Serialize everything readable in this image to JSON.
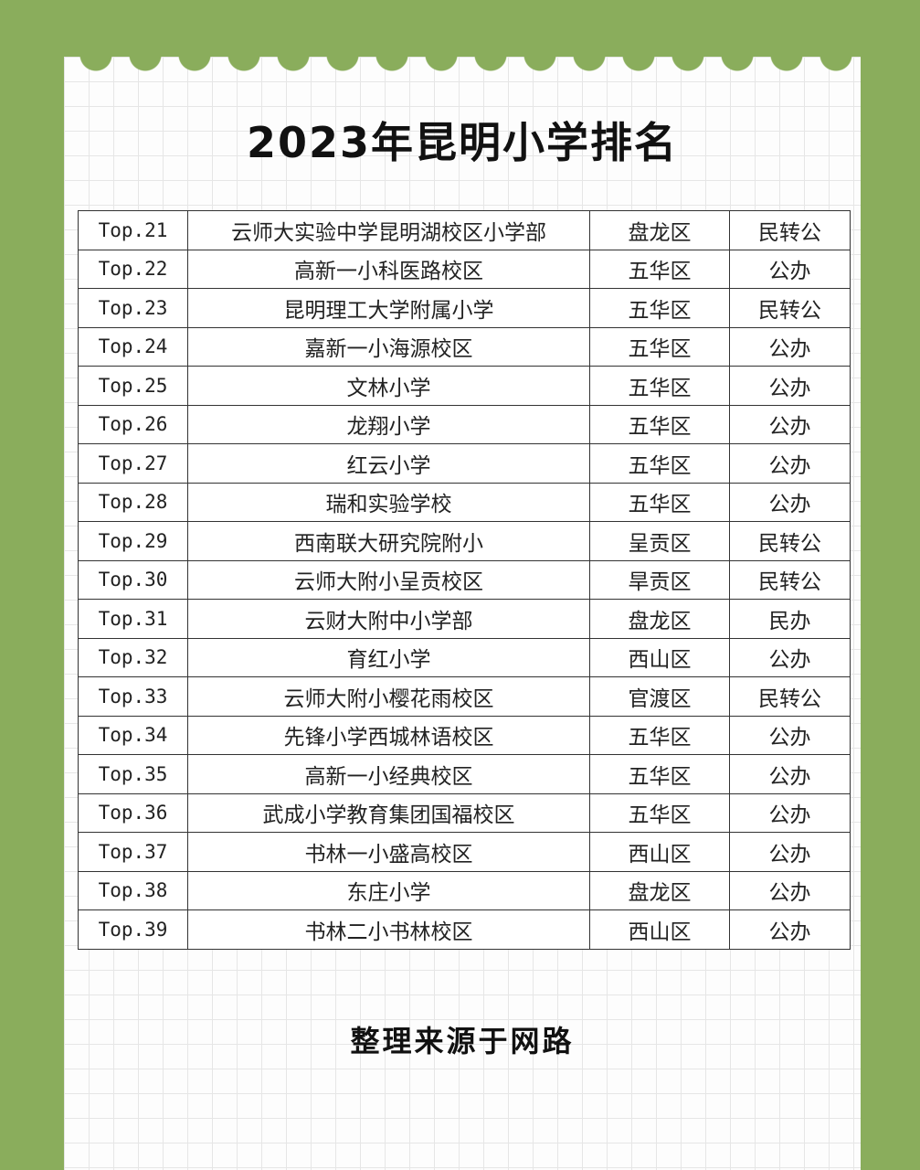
{
  "header": {
    "title": "2023年昆明小学排名"
  },
  "table": {
    "rows": [
      [
        "Top.21",
        "云师大实验中学昆明湖校区小学部",
        "盘龙区",
        "民转公"
      ],
      [
        "Top.22",
        "高新一小科医路校区",
        "五华区",
        "公办"
      ],
      [
        "Top.23",
        "昆明理工大学附属小学",
        "五华区",
        "民转公"
      ],
      [
        "Top.24",
        "嘉新一小海源校区",
        "五华区",
        "公办"
      ],
      [
        "Top.25",
        "文林小学",
        "五华区",
        "公办"
      ],
      [
        "Top.26",
        "龙翔小学",
        "五华区",
        "公办"
      ],
      [
        "Top.27",
        "红云小学",
        "五华区",
        "公办"
      ],
      [
        "Top.28",
        "瑞和实验学校",
        "五华区",
        "公办"
      ],
      [
        "Top.29",
        "西南联大研究院附小",
        "呈贡区",
        "民转公"
      ],
      [
        "Top.30",
        "云师大附小呈贡校区",
        "旱贡区",
        "民转公"
      ],
      [
        "Top.31",
        "云财大附中小学部",
        "盘龙区",
        "民办"
      ],
      [
        "Top.32",
        "育红小学",
        "西山区",
        "公办"
      ],
      [
        "Top.33",
        "云师大附小樱花雨校区",
        "官渡区",
        "民转公"
      ],
      [
        "Top.34",
        "先锋小学西城林语校区",
        "五华区",
        "公办"
      ],
      [
        "Top.35",
        "高新一小经典校区",
        "五华区",
        "公办"
      ],
      [
        "Top.36",
        "武成小学教育集团国福校区",
        "五华区",
        "公办"
      ],
      [
        "Top.37",
        "书林一小盛高校区",
        "西山区",
        "公办"
      ],
      [
        "Top.38",
        "东庄小学",
        "盘龙区",
        "公办"
      ],
      [
        "Top.39",
        "书林二小书林校区",
        "西山区",
        "公办"
      ]
    ]
  },
  "footer": {
    "note": "整理来源于网路"
  }
}
